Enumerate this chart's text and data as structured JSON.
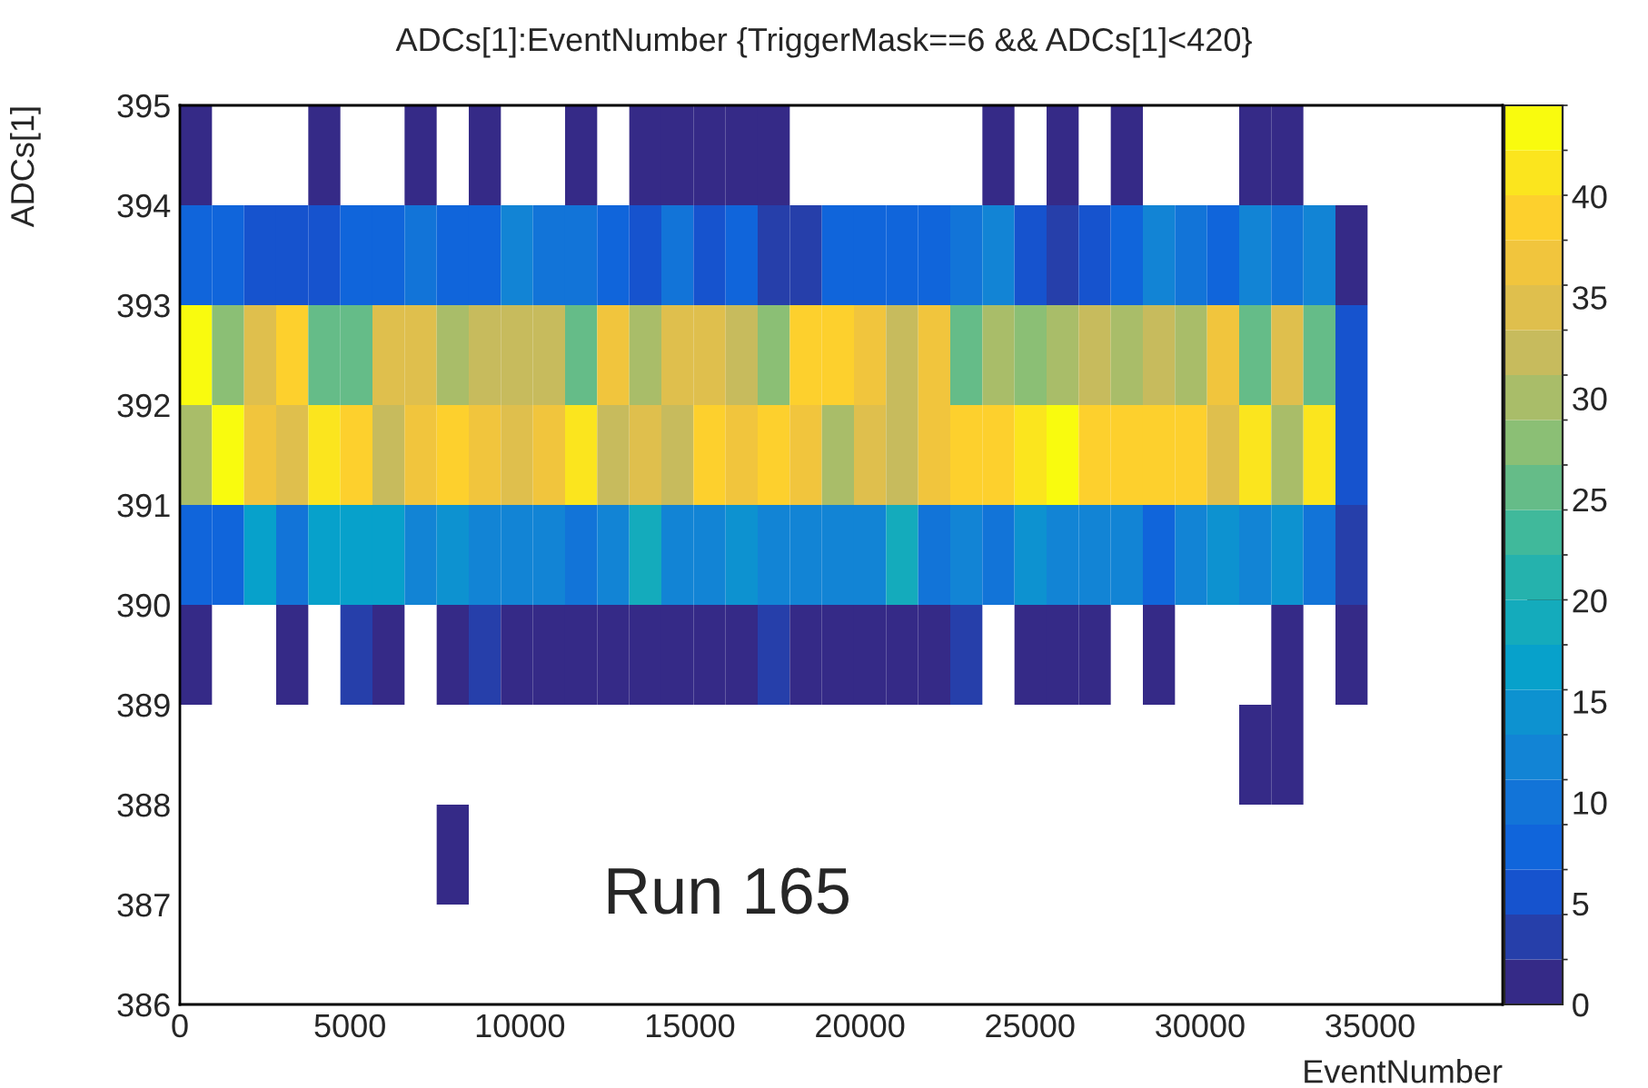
{
  "chart_data": {
    "type": "heatmap",
    "title": "ADCs[1]:EventNumber {TriggerMask==6 && ADCs[1]<420}",
    "xlabel": "EventNumber",
    "ylabel": "ADCs[1]",
    "x": [
      472,
      1416,
      2360,
      3304,
      4248,
      5192,
      6136,
      7080,
      8024,
      8968,
      9912,
      10856,
      11800,
      12744,
      13688,
      14632,
      15576,
      16520,
      17464,
      18408,
      19352,
      20296,
      21240,
      22184,
      23128,
      24072,
      25016,
      25960,
      26904,
      27848,
      28792,
      29736,
      30680,
      31624,
      32568,
      33512,
      34456
    ],
    "y": [
      394.5,
      393.5,
      392.5,
      391.5,
      390.5,
      389.5,
      388.5,
      387.5
    ],
    "xlim": [
      0,
      38900
    ],
    "xticks": [
      0,
      5000,
      10000,
      15000,
      20000,
      25000,
      30000,
      35000
    ],
    "ylim": [
      386,
      395
    ],
    "yticks": [
      386,
      387,
      388,
      389,
      390,
      391,
      392,
      393,
      394,
      395
    ],
    "clim": [
      0,
      44.5
    ],
    "cticks": [
      0,
      5,
      10,
      15,
      20,
      25,
      30,
      35,
      40
    ],
    "cells": [
      [
        1,
        null,
        null,
        null,
        1,
        null,
        null,
        1,
        null,
        1,
        null,
        null,
        1,
        null,
        1,
        1,
        1,
        1,
        1,
        null,
        null,
        null,
        null,
        null,
        null,
        1,
        null,
        1,
        null,
        1,
        null,
        null,
        null,
        1,
        1,
        null,
        null
      ],
      [
        8,
        8,
        6,
        6,
        6,
        7,
        7,
        10,
        7,
        7,
        12,
        10,
        10,
        8,
        6,
        10,
        6,
        8,
        4,
        4,
        8,
        8,
        8,
        8,
        10,
        12,
        6,
        4,
        6,
        8,
        12,
        10,
        8,
        12,
        10,
        12,
        1
      ],
      [
        44,
        28,
        34,
        38,
        25,
        25,
        34,
        34,
        30,
        32,
        32,
        32,
        25,
        36,
        30,
        34,
        34,
        32,
        28,
        38,
        38,
        36,
        32,
        36,
        25,
        30,
        28,
        30,
        32,
        30,
        32,
        30,
        36,
        25,
        34,
        25,
        6
      ],
      [
        30,
        44,
        36,
        34,
        42,
        38,
        32,
        36,
        38,
        36,
        34,
        36,
        42,
        32,
        34,
        32,
        38,
        36,
        38,
        36,
        30,
        34,
        32,
        36,
        38,
        38,
        42,
        44,
        38,
        40,
        38,
        38,
        34,
        42,
        30,
        42,
        6
      ],
      [
        8,
        8,
        16,
        9,
        17,
        17,
        16,
        12,
        15,
        12,
        12,
        12,
        9,
        12,
        20,
        12,
        12,
        14,
        12,
        12,
        12,
        12,
        20,
        9,
        12,
        10,
        15,
        12,
        12,
        12,
        8,
        12,
        15,
        12,
        15,
        10,
        3
      ],
      [
        1,
        null,
        null,
        1,
        null,
        3,
        1,
        null,
        1,
        3,
        1,
        1,
        1,
        1,
        1,
        1,
        1,
        1,
        3,
        1,
        1,
        1,
        1,
        1,
        3,
        null,
        1,
        1,
        1,
        null,
        1,
        null,
        null,
        null,
        1,
        null,
        1
      ],
      [
        null,
        null,
        null,
        null,
        null,
        null,
        null,
        null,
        null,
        null,
        null,
        null,
        null,
        null,
        null,
        null,
        null,
        null,
        null,
        null,
        null,
        null,
        null,
        null,
        null,
        null,
        null,
        null,
        null,
        null,
        null,
        null,
        null,
        1,
        1,
        null,
        null
      ],
      [
        null,
        null,
        null,
        null,
        null,
        null,
        null,
        null,
        1,
        null,
        null,
        null,
        null,
        null,
        null,
        null,
        null,
        null,
        null,
        null,
        null,
        null,
        null,
        null,
        null,
        null,
        null,
        null,
        null,
        null,
        null,
        null,
        null,
        null,
        null,
        null,
        null
      ]
    ],
    "annotations": [
      "Run 165"
    ]
  }
}
